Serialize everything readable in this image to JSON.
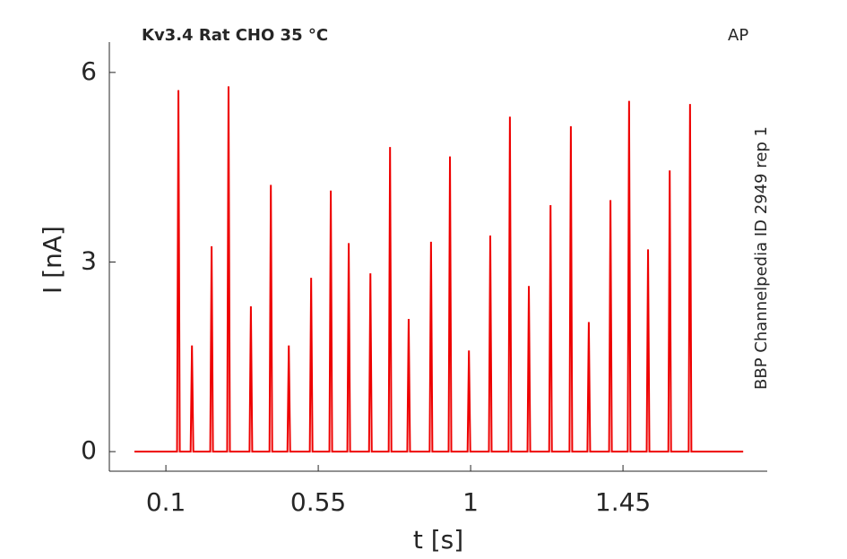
{
  "chart_data": {
    "type": "line",
    "title": "Kv3.4  Rat  CHO  35 °C",
    "corner_label": "AP",
    "side_label": "BBP Channelpedia ID 2949 rep 1",
    "xlabel": "t [s]",
    "ylabel": "I [nA]",
    "xlim": [
      -0.067,
      1.876
    ],
    "ylim": [
      -0.31,
      6.48
    ],
    "xticks": [
      0.1,
      0.55,
      1,
      1.45
    ],
    "yticks": [
      0,
      3,
      6
    ],
    "grid": false,
    "x": [
      0.007,
      0.133,
      0.137,
      0.141,
      0.173,
      0.177,
      0.181,
      0.231,
      0.235,
      0.239,
      0.281,
      0.285,
      0.289,
      0.347,
      0.351,
      0.355,
      0.406,
      0.41,
      0.414,
      0.459,
      0.463,
      0.467,
      0.525,
      0.529,
      0.533,
      0.583,
      0.587,
      0.591,
      0.636,
      0.64,
      0.644,
      0.7,
      0.704,
      0.708,
      0.758,
      0.762,
      0.766,
      0.813,
      0.817,
      0.821,
      0.879,
      0.883,
      0.887,
      0.935,
      0.939,
      0.943,
      0.991,
      0.995,
      0.999,
      1.054,
      1.058,
      1.062,
      1.112,
      1.116,
      1.12,
      1.168,
      1.172,
      1.176,
      1.232,
      1.236,
      1.24,
      1.292,
      1.296,
      1.3,
      1.345,
      1.349,
      1.353,
      1.409,
      1.413,
      1.417,
      1.464,
      1.468,
      1.472,
      1.52,
      1.524,
      1.528,
      1.584,
      1.588,
      1.592,
      1.644,
      1.648,
      1.652,
      1.805
    ],
    "series": [
      {
        "color": "#ee0000",
        "values": [
          0,
          0,
          5.72,
          0,
          0,
          1.68,
          0,
          0,
          3.25,
          0,
          0,
          5.78,
          0,
          0,
          2.3,
          0,
          0,
          4.22,
          0,
          0,
          1.68,
          0,
          0,
          2.75,
          0,
          0,
          4.13,
          0,
          0,
          3.3,
          0,
          0,
          2.82,
          0,
          0,
          4.82,
          0,
          0,
          2.1,
          0,
          0,
          3.32,
          0,
          0,
          4.67,
          0,
          0,
          1.6,
          0,
          0,
          3.42,
          0,
          0,
          5.3,
          0,
          0,
          2.62,
          0,
          0,
          3.9,
          0,
          0,
          5.15,
          0,
          0,
          2.05,
          0,
          0,
          3.98,
          0,
          0,
          5.55,
          0,
          0,
          3.2,
          0,
          0,
          4.45,
          0,
          0,
          5.5,
          0,
          0
        ]
      }
    ]
  }
}
